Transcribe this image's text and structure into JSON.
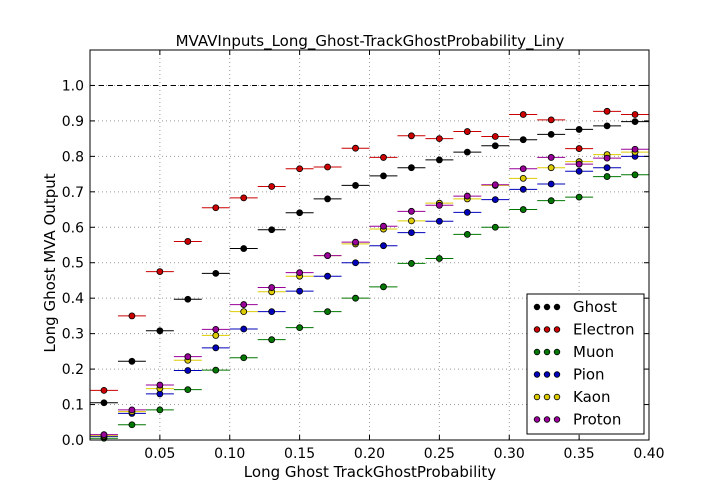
{
  "chart_data": {
    "type": "scatter",
    "title": "MVAVInputs_Long_Ghost-TrackGhostProbability_Liny",
    "xlabel": "Long Ghost TrackGhostProbability",
    "ylabel": "Long Ghost MVA Output",
    "xlim": [
      0.0,
      0.4
    ],
    "ylim": [
      0.0,
      1.1
    ],
    "x_ticks": [
      0.05,
      0.1,
      0.15,
      0.2,
      0.25,
      0.3,
      0.35,
      0.4
    ],
    "x_tick_labels": [
      "0.05",
      "0.10",
      "0.15",
      "0.20",
      "0.25",
      "0.30",
      "0.35",
      "0.40"
    ],
    "y_ticks": [
      0.0,
      0.1,
      0.2,
      0.3,
      0.4,
      0.5,
      0.6,
      0.7,
      0.8,
      0.9,
      1.0
    ],
    "y_tick_labels": [
      "0.0",
      "0.1",
      "0.2",
      "0.3",
      "0.4",
      "0.5",
      "0.6",
      "0.7",
      "0.8",
      "0.9",
      "1.0"
    ],
    "grid": true,
    "reference_line_y": 1.0,
    "x_bin_half_width": 0.01,
    "legend_placement": "lower-right",
    "x": [
      0.01,
      0.03,
      0.05,
      0.07,
      0.09,
      0.11,
      0.13,
      0.15,
      0.17,
      0.19,
      0.21,
      0.23,
      0.25,
      0.27,
      0.29,
      0.31,
      0.33,
      0.35,
      0.37,
      0.39
    ],
    "series": [
      {
        "name": "Ghost",
        "color": "#000000",
        "values": [
          0.105,
          0.222,
          0.308,
          0.397,
          0.47,
          0.54,
          0.593,
          0.641,
          0.68,
          0.718,
          0.745,
          0.768,
          0.79,
          0.812,
          0.83,
          0.847,
          0.862,
          0.876,
          0.886,
          0.898
        ]
      },
      {
        "name": "Electron",
        "color": "#cc0000",
        "values": [
          0.14,
          0.35,
          0.475,
          0.56,
          0.655,
          0.683,
          0.715,
          0.765,
          0.77,
          0.823,
          0.797,
          0.858,
          0.85,
          0.87,
          0.856,
          0.918,
          0.903,
          0.822,
          0.927,
          0.918
        ]
      },
      {
        "name": "Muon",
        "color": "#007700",
        "values": [
          0.005,
          0.043,
          0.085,
          0.142,
          0.197,
          0.232,
          0.283,
          0.317,
          0.362,
          0.4,
          0.432,
          0.498,
          0.512,
          0.58,
          0.6,
          0.65,
          0.675,
          0.685,
          0.743,
          0.748
        ]
      },
      {
        "name": "Pion",
        "color": "#0000bb",
        "values": [
          0.01,
          0.075,
          0.13,
          0.196,
          0.26,
          0.313,
          0.362,
          0.42,
          0.462,
          0.5,
          0.548,
          0.585,
          0.617,
          0.642,
          0.678,
          0.707,
          0.722,
          0.758,
          0.768,
          0.8
        ]
      },
      {
        "name": "Kaon",
        "color": "#ddcc00",
        "values": [
          0.012,
          0.08,
          0.145,
          0.225,
          0.295,
          0.362,
          0.418,
          0.462,
          0.52,
          0.553,
          0.595,
          0.618,
          0.668,
          0.68,
          0.718,
          0.738,
          0.768,
          0.785,
          0.805,
          0.812
        ]
      },
      {
        "name": "Proton",
        "color": "#990099",
        "values": [
          0.015,
          0.085,
          0.155,
          0.235,
          0.312,
          0.382,
          0.43,
          0.472,
          0.52,
          0.558,
          0.603,
          0.645,
          0.662,
          0.688,
          0.72,
          0.765,
          0.797,
          0.778,
          0.795,
          0.82
        ]
      }
    ]
  }
}
